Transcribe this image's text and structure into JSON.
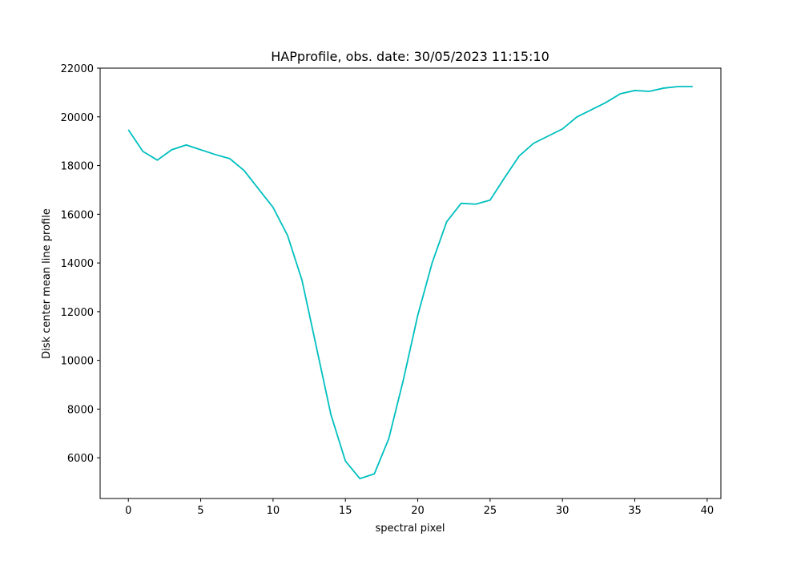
{
  "chart_data": {
    "type": "line",
    "title": "HAPprofile, obs. date: 30/05/2023 11:15:10",
    "xlabel": "spectral pixel",
    "ylabel": "Disk center mean line profile",
    "x": [
      0,
      1,
      2,
      3,
      4,
      5,
      6,
      7,
      8,
      9,
      10,
      11,
      12,
      13,
      14,
      15,
      16,
      17,
      18,
      19,
      20,
      21,
      22,
      23,
      24,
      25,
      26,
      27,
      28,
      29,
      30,
      31,
      32,
      33,
      34,
      35,
      36,
      37,
      38,
      39
    ],
    "series": [
      {
        "name": "Disk center mean line profile",
        "color": "#00bfbf",
        "values": [
          19470,
          18583,
          18222,
          18649,
          18846,
          18649,
          18452,
          18287,
          17795,
          17039,
          16283,
          15133,
          13294,
          10534,
          7774,
          5869,
          5146,
          5343,
          6789,
          9187,
          11848,
          14016,
          15692,
          16448,
          16415,
          16579,
          17499,
          18386,
          18912,
          19207,
          19503,
          19996,
          20292,
          20587,
          20949,
          21080,
          21047,
          21179,
          21244,
          21244
        ]
      }
    ],
    "xlim": [
      -1.95,
      40.95
    ],
    "xticks": [
      0,
      5,
      10,
      15,
      20,
      25,
      30,
      35,
      40
    ],
    "ylim": [
      4330,
      22000
    ],
    "yticks": [
      6000,
      8000,
      10000,
      12000,
      14000,
      16000,
      18000,
      20000,
      22000
    ],
    "grid": false
  }
}
